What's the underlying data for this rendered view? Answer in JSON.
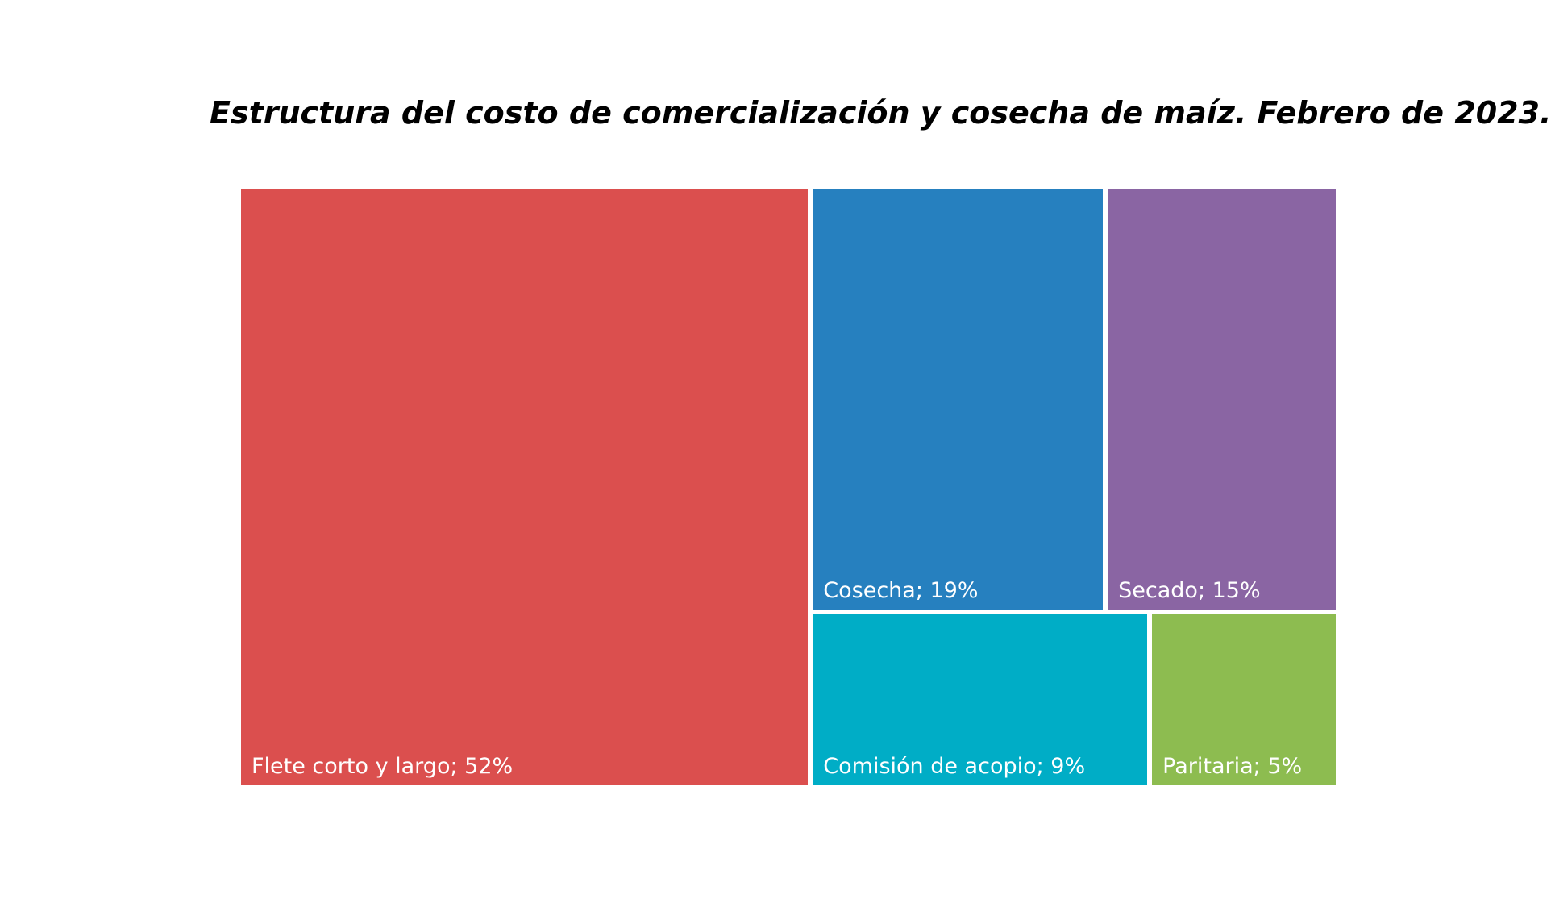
{
  "chart_data": {
    "type": "treemap",
    "title": "Estructura del costo de comercialización y cosecha de maíz. Febrero de 2023.",
    "items": [
      {
        "id": "flete",
        "name": "Flete corto y largo",
        "value": 52,
        "label": "Flete corto y largo; 52%",
        "color": "#DB4F4E"
      },
      {
        "id": "cosecha",
        "name": "Cosecha",
        "value": 19,
        "label": "Cosecha; 19%",
        "color": "#2680BF"
      },
      {
        "id": "secado",
        "name": "Secado",
        "value": 15,
        "label": "Secado; 15%",
        "color": "#8A65A3"
      },
      {
        "id": "comision",
        "name": "Comisión de acopio",
        "value": 9,
        "label": "Comisión de acopio; 9%",
        "color": "#00ADC6"
      },
      {
        "id": "paritaria",
        "name": "Paritaria",
        "value": 5,
        "label": "Paritaria; 5%",
        "color": "#8DBC50"
      }
    ]
  }
}
